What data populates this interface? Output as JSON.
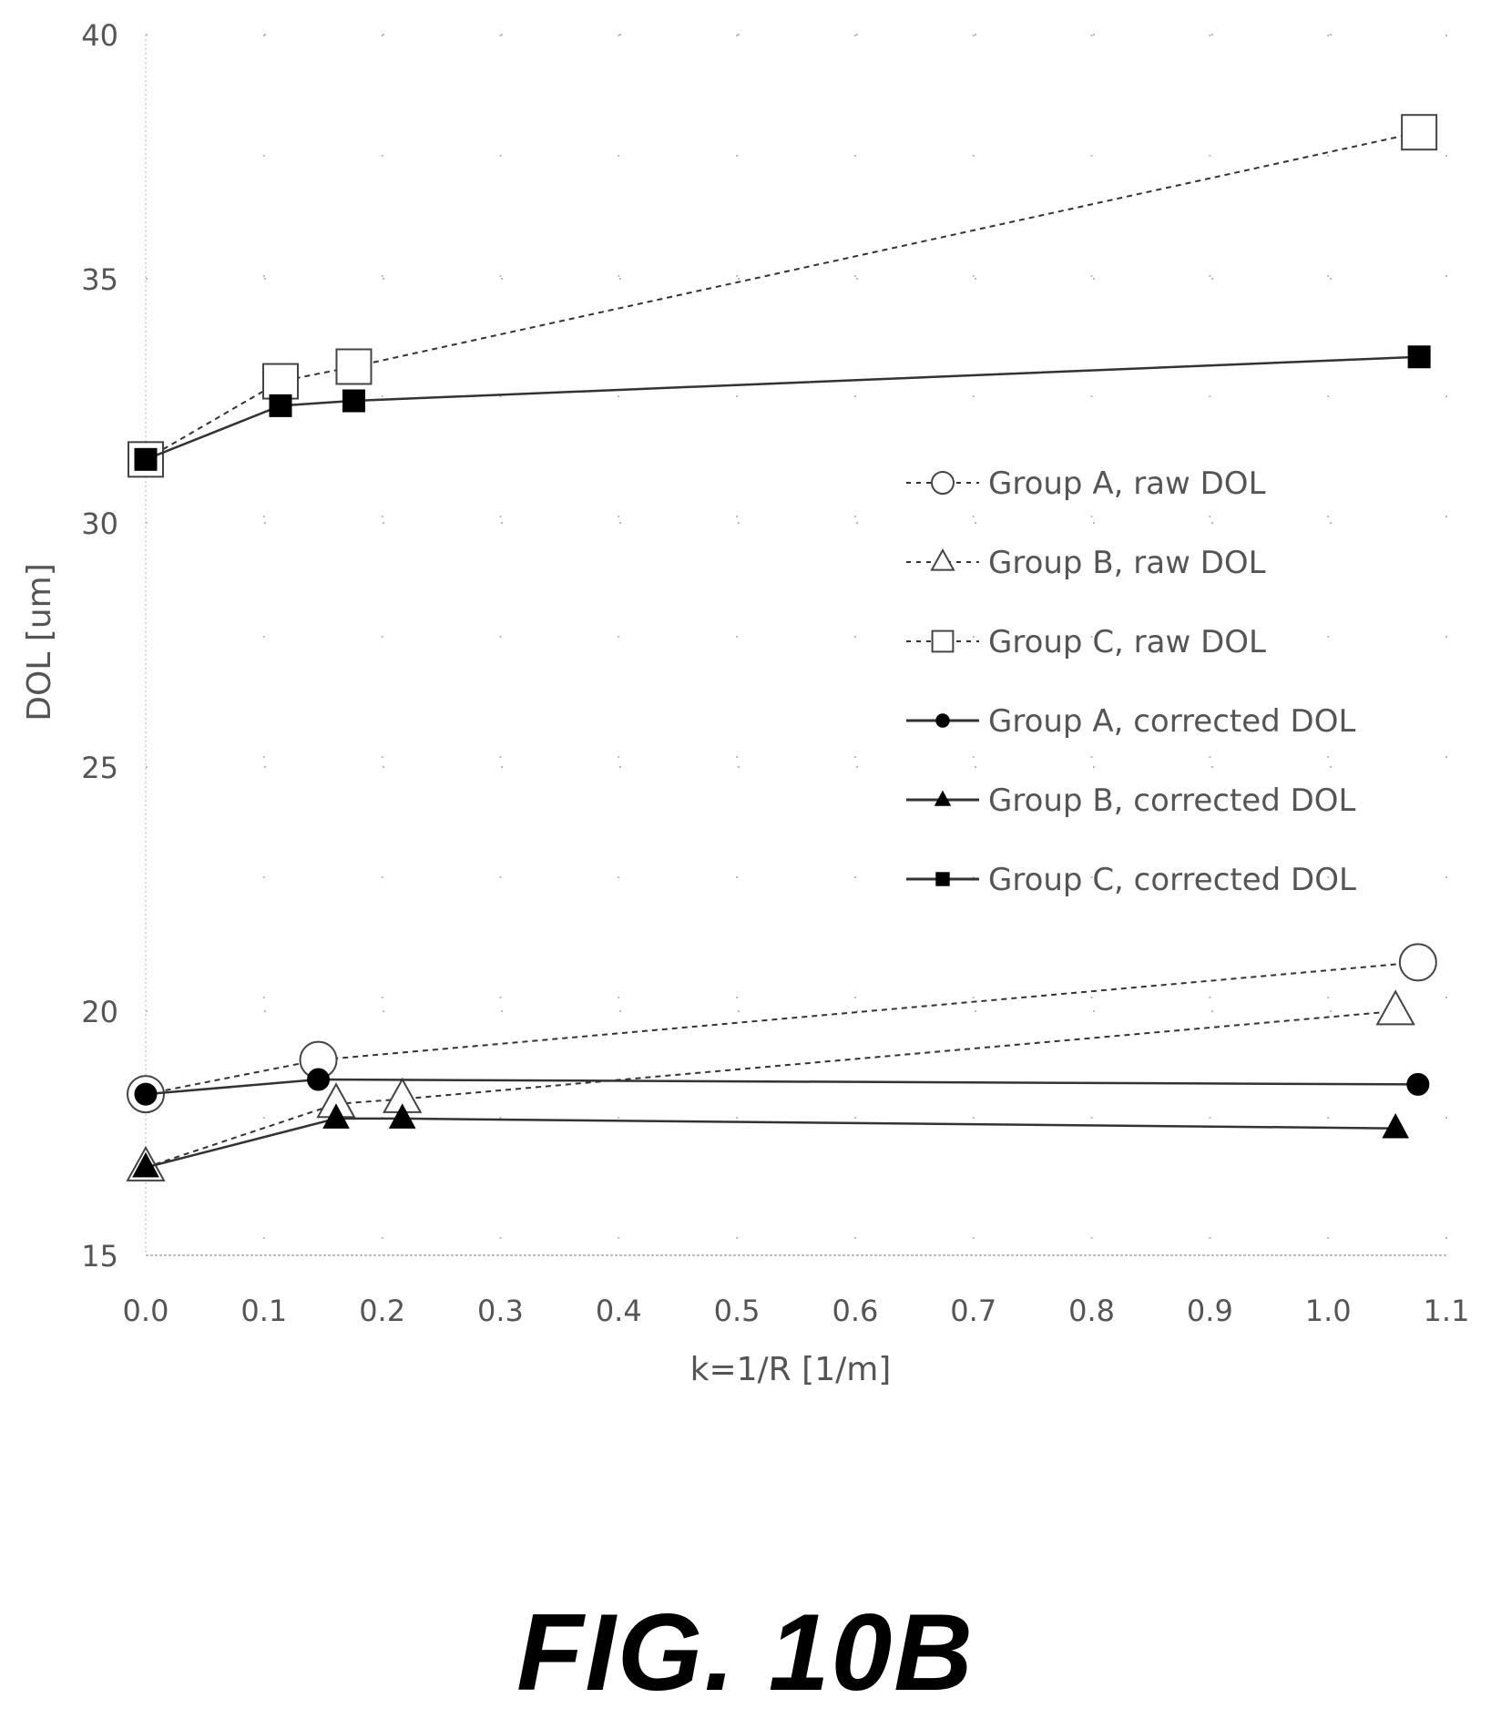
{
  "chart_data": {
    "type": "line",
    "title": "",
    "xlabel": "k=1/R [1/m]",
    "ylabel": "DOL [um]",
    "xlim": [
      0.0,
      1.1
    ],
    "ylim": [
      15,
      40
    ],
    "xticks": [
      "0.0",
      "0.1",
      "0.2",
      "0.3",
      "0.4",
      "0.5",
      "0.6",
      "0.7",
      "0.8",
      "0.9",
      "1.0",
      "1.1"
    ],
    "yticks": [
      "15",
      "20",
      "25",
      "30",
      "35",
      "40"
    ],
    "grid": "dotted",
    "legend_position": "right",
    "series": [
      {
        "name": "Group A, raw DOL",
        "marker": "circle-open",
        "line": "dashed",
        "x": [
          0.0,
          0.146,
          1.076
        ],
        "y": [
          18.3,
          19.0,
          21.0
        ]
      },
      {
        "name": "Group B, raw DOL",
        "marker": "triangle-open",
        "line": "dashed",
        "x": [
          0.0,
          0.161,
          0.217,
          1.057
        ],
        "y": [
          16.8,
          18.1,
          18.2,
          20.0
        ]
      },
      {
        "name": "Group C, raw DOL",
        "marker": "square-open",
        "line": "dashed",
        "x": [
          0.0,
          0.114,
          0.176,
          1.077
        ],
        "y": [
          31.3,
          32.9,
          33.2,
          38.0
        ]
      },
      {
        "name": "Group A, corrected DOL",
        "marker": "circle-filled",
        "line": "solid",
        "x": [
          0.0,
          0.146,
          1.076
        ],
        "y": [
          18.3,
          18.6,
          18.5
        ]
      },
      {
        "name": "Group B, corrected DOL",
        "marker": "triangle-filled",
        "line": "solid",
        "x": [
          0.0,
          0.161,
          0.217,
          1.057
        ],
        "y": [
          16.8,
          17.8,
          17.8,
          17.6
        ]
      },
      {
        "name": "Group C, corrected DOL",
        "marker": "square-filled",
        "line": "solid",
        "x": [
          0.0,
          0.114,
          0.176,
          1.077
        ],
        "y": [
          31.3,
          32.4,
          32.5,
          33.4
        ]
      }
    ]
  },
  "figure_label": "FIG. 10B",
  "colors": {
    "axis_text": "#555555",
    "line": "#333333",
    "marker": "#000000",
    "grid": "#bbbbbb"
  }
}
